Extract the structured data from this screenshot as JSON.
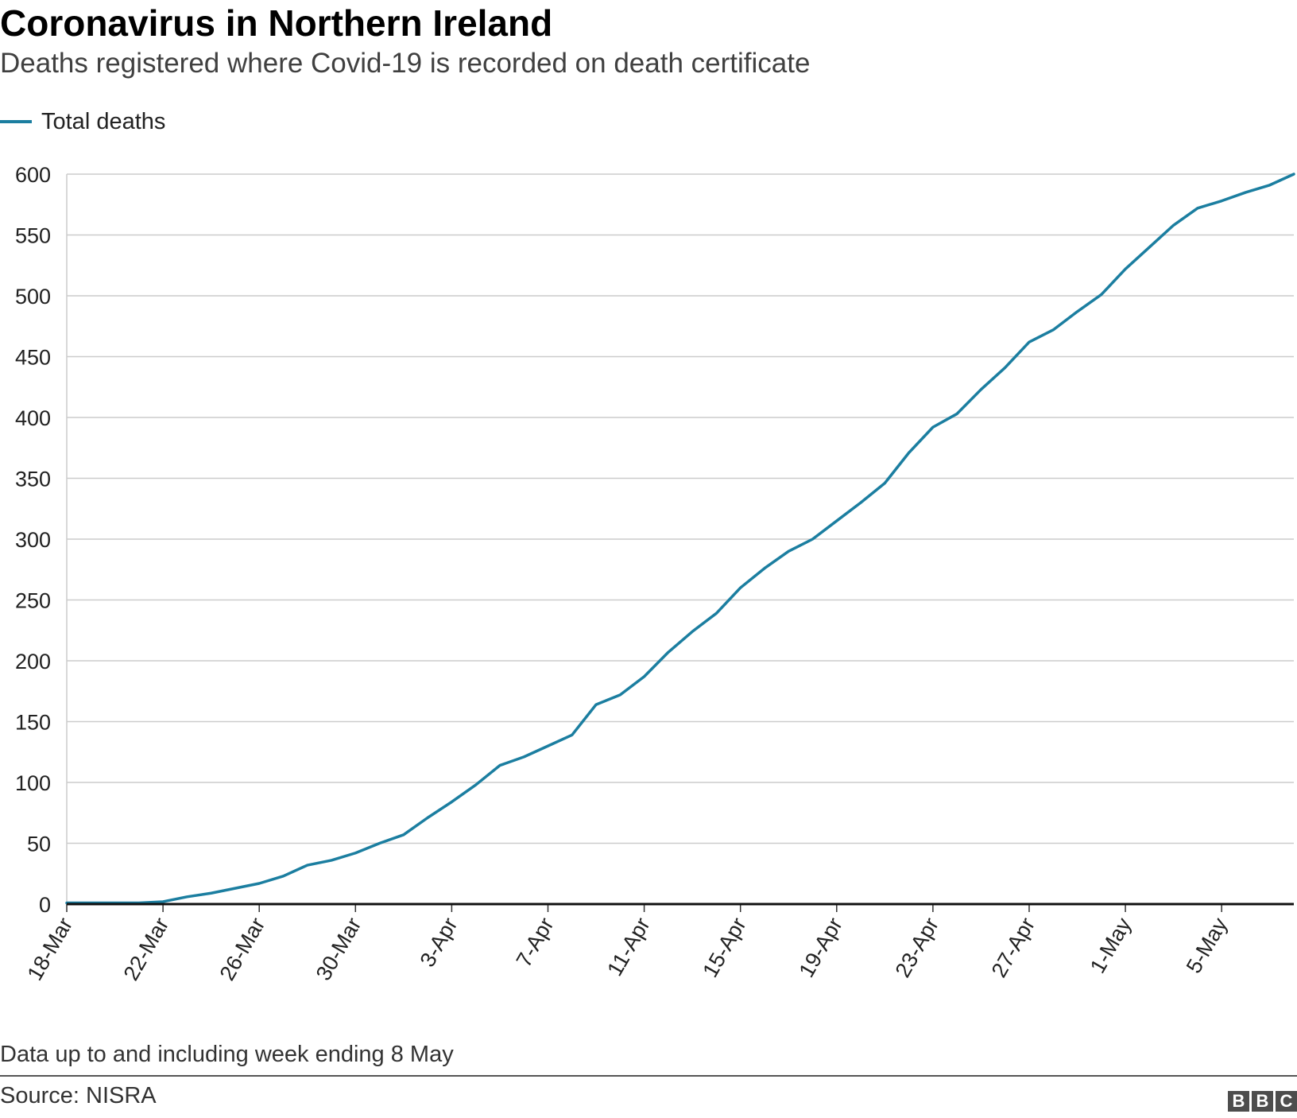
{
  "chart_data": {
    "type": "line",
    "title": "Coronavirus in Northern Ireland",
    "subtitle": "Deaths registered where Covid-19 is recorded on death certificate",
    "xlabel": "",
    "ylabel": "",
    "ylim": [
      0,
      600
    ],
    "yticks": [
      0,
      50,
      100,
      150,
      200,
      250,
      300,
      350,
      400,
      450,
      500,
      550,
      600
    ],
    "x_tick_labels": [
      "18-Mar",
      "22-Mar",
      "26-Mar",
      "30-Mar",
      "3-Apr",
      "7-Apr",
      "11-Apr",
      "15-Apr",
      "19-Apr",
      "23-Apr",
      "27-Apr",
      "1-May",
      "5-May"
    ],
    "x_tick_indices": [
      0,
      4,
      8,
      12,
      16,
      20,
      24,
      28,
      32,
      36,
      40,
      44,
      48
    ],
    "legend_position": "top-left",
    "grid": true,
    "series": [
      {
        "name": "Total deaths",
        "color": "#1b7ea0",
        "values": [
          1,
          1,
          1,
          1,
          2,
          6,
          9,
          13,
          17,
          23,
          32,
          36,
          42,
          50,
          57,
          71,
          84,
          98,
          114,
          121,
          130,
          139,
          164,
          172,
          187,
          207,
          224,
          239,
          260,
          276,
          290,
          300,
          315,
          330,
          346,
          371,
          392,
          403,
          423,
          441,
          462,
          472,
          487,
          501,
          522,
          540,
          558,
          572,
          578,
          585,
          591,
          600
        ]
      }
    ]
  },
  "footer": {
    "note": "Data up to and including week ending 8 May",
    "source": "Source: NISRA",
    "logo_letters": [
      "B",
      "B",
      "C"
    ]
  }
}
